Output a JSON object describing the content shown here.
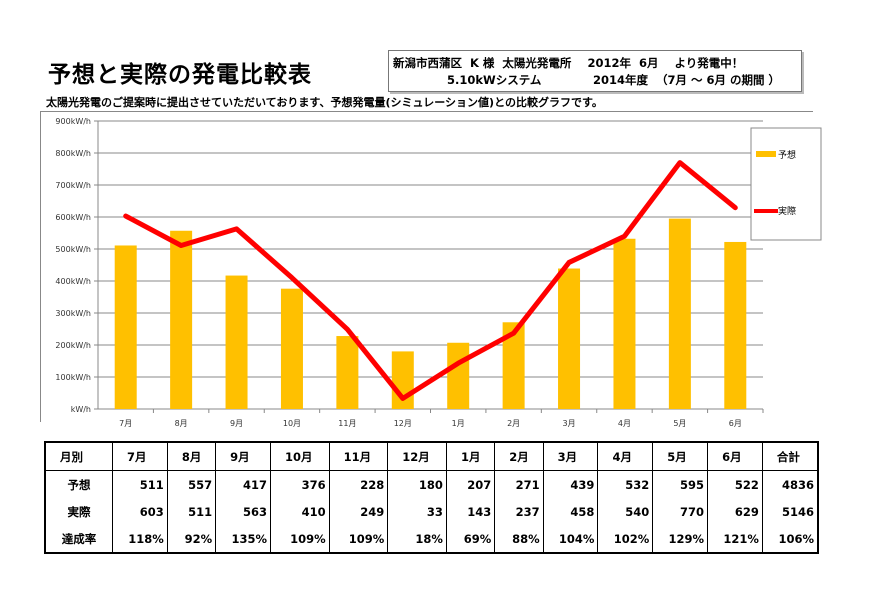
{
  "title": "予想と実際の発電比較表",
  "info": {
    "line1": "新潟市西蒲区  K 様  太陽光発電所    2012年  6月    より発電中！",
    "line2a": "5.10kWシステム",
    "line2b": "2014年度  （7月 ～ 6月 の期間 ）"
  },
  "subtitle": "太陽光発電のご提案時に提出させていただいております、予想発電量(シミュレーション値)との比較グラフです。",
  "chart_data": {
    "type": "bar+line",
    "categories": [
      "7月",
      "8月",
      "9月",
      "10月",
      "11月",
      "12月",
      "1月",
      "2月",
      "3月",
      "4月",
      "5月",
      "6月"
    ],
    "series": [
      {
        "name": "予想",
        "type": "bar",
        "color": "#FFC000",
        "values": [
          511,
          557,
          417,
          376,
          228,
          180,
          207,
          271,
          439,
          532,
          595,
          522
        ]
      },
      {
        "name": "実際",
        "type": "line",
        "color": "#FF0000",
        "values": [
          603,
          511,
          563,
          410,
          249,
          33,
          143,
          237,
          458,
          540,
          770,
          629
        ]
      }
    ],
    "yticks": [
      "kW/h",
      "100kW/h",
      "200kW/h",
      "300kW/h",
      "400kW/h",
      "500kW/h",
      "600kW/h",
      "700kW/h",
      "800kW/h",
      "900kW/h"
    ],
    "ylim": [
      0,
      900
    ],
    "grid": true,
    "legend": "right"
  },
  "table": {
    "header": [
      "月別",
      "7月",
      "8月",
      "9月",
      "10月",
      "11月",
      "12月",
      "1月",
      "2月",
      "3月",
      "4月",
      "5月",
      "6月",
      "合計"
    ],
    "rows": [
      [
        "予想",
        "511",
        "557",
        "417",
        "376",
        "228",
        "180",
        "207",
        "271",
        "439",
        "532",
        "595",
        "522",
        "4836"
      ],
      [
        "実際",
        "603",
        "511",
        "563",
        "410",
        "249",
        "33",
        "143",
        "237",
        "458",
        "540",
        "770",
        "629",
        "5146"
      ],
      [
        "達成率",
        "118%",
        "92%",
        "135%",
        "109%",
        "109%",
        "18%",
        "69%",
        "88%",
        "104%",
        "102%",
        "129%",
        "121%",
        "106%"
      ]
    ]
  }
}
